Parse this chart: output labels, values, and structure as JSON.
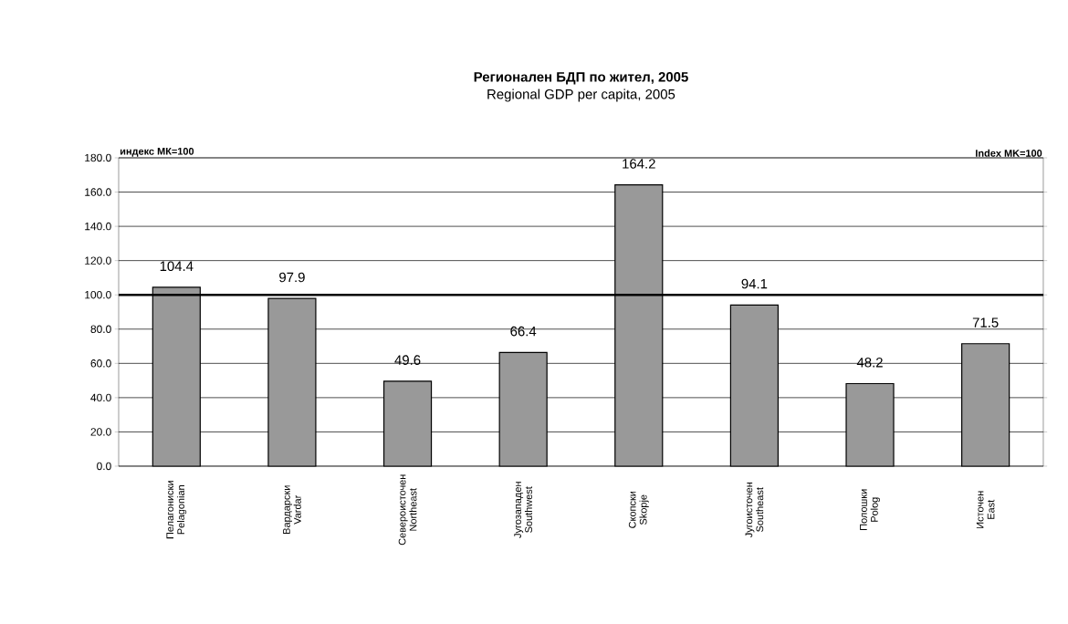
{
  "chart_data": {
    "type": "bar",
    "title": "Регионален БДП по жител, 2005",
    "subtitle": "Regional GDP per capita, 2005",
    "ylabel": "индекс МК=100",
    "y2label": "Index MK=100",
    "categories": [
      "Пелагониски Pelagonian",
      "Вардарски Vardar",
      "Североисточен Northeast",
      "Југозападен Southwest",
      "Скопски Skopje",
      "Југоисточен Southeast",
      "Полошки Polog",
      "Источен East"
    ],
    "values": [
      104.4,
      97.9,
      49.6,
      66.4,
      164.2,
      94.1,
      48.2,
      71.5
    ],
    "color": "#999999",
    "data_labels": true,
    "grid": "y",
    "ylim": [
      0,
      180
    ],
    "yticks": [
      {
        "value": 0,
        "label": "0.0"
      },
      {
        "value": 20,
        "label": "20.0"
      },
      {
        "value": 40,
        "label": "40.0"
      },
      {
        "value": 60,
        "label": "60.0"
      },
      {
        "value": 80,
        "label": "80.0"
      },
      {
        "value": 100,
        "label": "100.0"
      },
      {
        "value": 120,
        "label": "120.0"
      },
      {
        "value": 140,
        "label": "140.0"
      },
      {
        "value": 160,
        "label": "160.0"
      },
      {
        "value": 180,
        "label": "180.0"
      }
    ],
    "ref_lines": [
      {
        "axis": "y",
        "value": 100,
        "color": "#000000"
      }
    ]
  }
}
